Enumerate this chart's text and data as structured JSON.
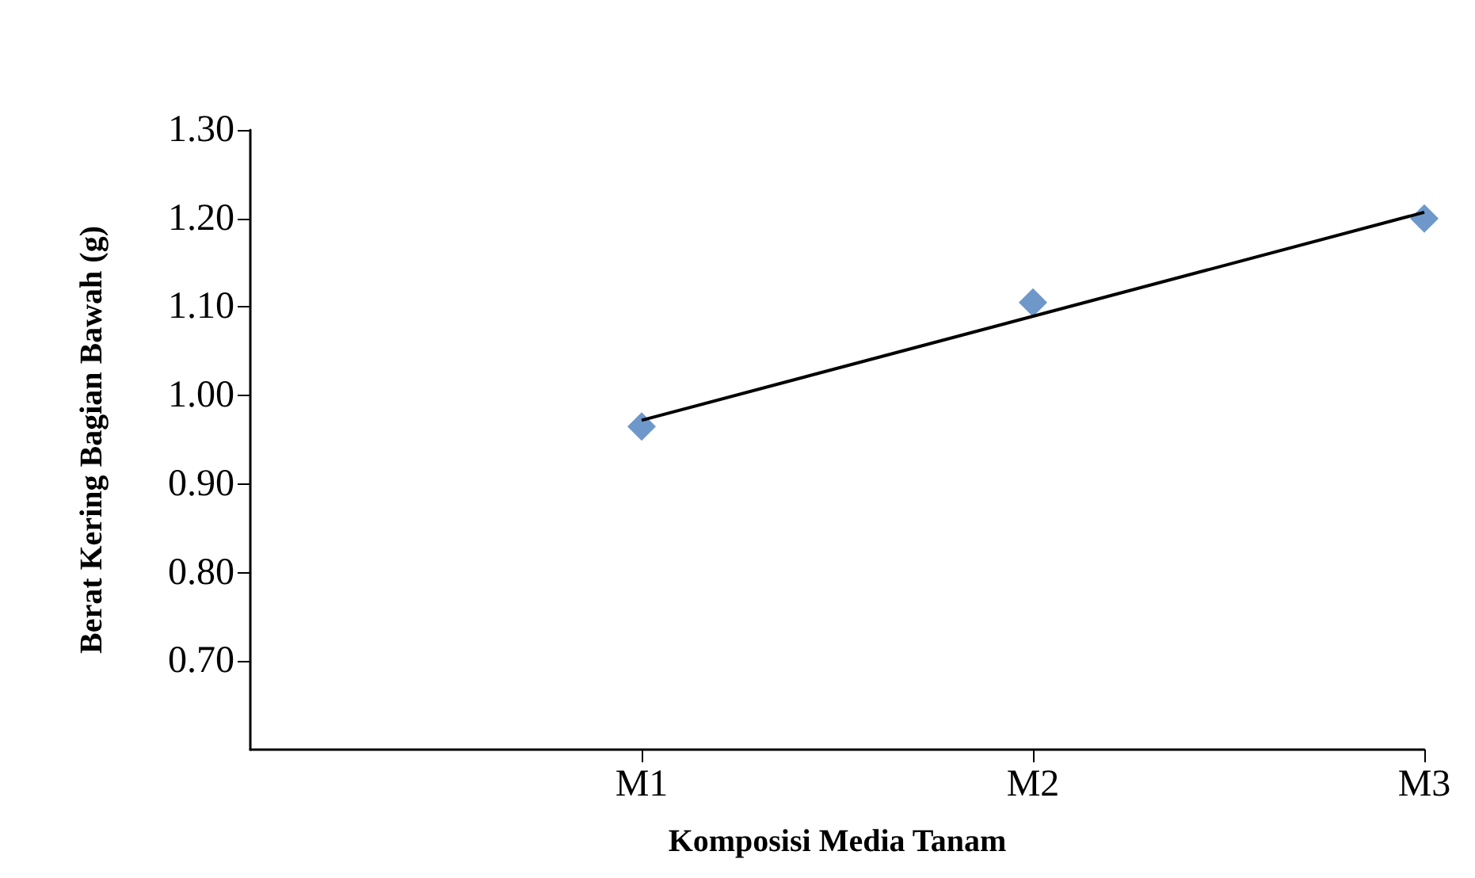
{
  "chart_data": {
    "type": "scatter",
    "xlabel": "Komposisi Media Tanam",
    "ylabel": "Berat Kering Bagian Bawah (g)",
    "categories": [
      null,
      "M1",
      "M2",
      "M3"
    ],
    "series": [
      {
        "color": "#4a7ebb",
        "values": [
          null,
          0.965,
          1.105,
          1.2
        ],
        "marker": "diamond"
      },
      {
        "type": "line",
        "color": "#000000",
        "values": [
          null,
          0.972,
          null,
          1.207
        ],
        "marker": "none",
        "line_style": "solid"
      }
    ],
    "ylim": [
      0.6,
      1.3
    ],
    "yticks": [
      {
        "value": 0.7,
        "label": "0.70"
      },
      {
        "value": 0.8,
        "label": "0.80"
      },
      {
        "value": 0.9,
        "label": "0.90"
      },
      {
        "value": 1.0,
        "label": "1.00"
      },
      {
        "value": 1.1,
        "label": "1.10"
      },
      {
        "value": 1.2,
        "label": "1.20"
      },
      {
        "value": 1.3,
        "label": "1.30"
      }
    ],
    "grid": false
  }
}
